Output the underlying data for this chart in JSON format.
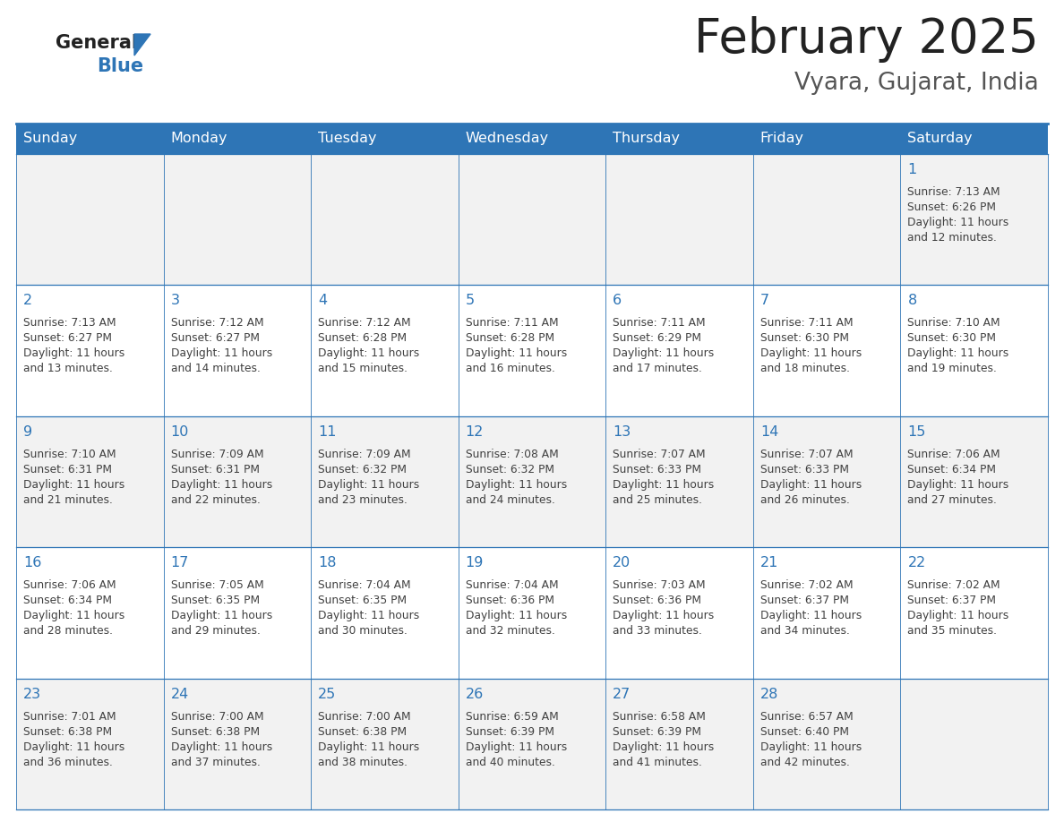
{
  "title": "February 2025",
  "subtitle": "Vyara, Gujarat, India",
  "header_color": "#2E75B6",
  "header_text_color": "#FFFFFF",
  "days_of_week": [
    "Sunday",
    "Monday",
    "Tuesday",
    "Wednesday",
    "Thursday",
    "Friday",
    "Saturday"
  ],
  "background_color": "#FFFFFF",
  "cell_bg_even": "#F2F2F2",
  "cell_bg_odd": "#FFFFFF",
  "border_color": "#2E75B6",
  "text_color": "#404040",
  "day_number_color": "#2E75B6",
  "logo_text_color": "#222222",
  "logo_blue_color": "#2E75B6",
  "title_color": "#222222",
  "subtitle_color": "#555555",
  "calendar_data": [
    [
      null,
      null,
      null,
      null,
      null,
      null,
      {
        "day": 1,
        "sunrise": "7:13 AM",
        "sunset": "6:26 PM",
        "daylight": "11 hours and 12 minutes."
      }
    ],
    [
      {
        "day": 2,
        "sunrise": "7:13 AM",
        "sunset": "6:27 PM",
        "daylight": "11 hours and 13 minutes."
      },
      {
        "day": 3,
        "sunrise": "7:12 AM",
        "sunset": "6:27 PM",
        "daylight": "11 hours and 14 minutes."
      },
      {
        "day": 4,
        "sunrise": "7:12 AM",
        "sunset": "6:28 PM",
        "daylight": "11 hours and 15 minutes."
      },
      {
        "day": 5,
        "sunrise": "7:11 AM",
        "sunset": "6:28 PM",
        "daylight": "11 hours and 16 minutes."
      },
      {
        "day": 6,
        "sunrise": "7:11 AM",
        "sunset": "6:29 PM",
        "daylight": "11 hours and 17 minutes."
      },
      {
        "day": 7,
        "sunrise": "7:11 AM",
        "sunset": "6:30 PM",
        "daylight": "11 hours and 18 minutes."
      },
      {
        "day": 8,
        "sunrise": "7:10 AM",
        "sunset": "6:30 PM",
        "daylight": "11 hours and 19 minutes."
      }
    ],
    [
      {
        "day": 9,
        "sunrise": "7:10 AM",
        "sunset": "6:31 PM",
        "daylight": "11 hours and 21 minutes."
      },
      {
        "day": 10,
        "sunrise": "7:09 AM",
        "sunset": "6:31 PM",
        "daylight": "11 hours and 22 minutes."
      },
      {
        "day": 11,
        "sunrise": "7:09 AM",
        "sunset": "6:32 PM",
        "daylight": "11 hours and 23 minutes."
      },
      {
        "day": 12,
        "sunrise": "7:08 AM",
        "sunset": "6:32 PM",
        "daylight": "11 hours and 24 minutes."
      },
      {
        "day": 13,
        "sunrise": "7:07 AM",
        "sunset": "6:33 PM",
        "daylight": "11 hours and 25 minutes."
      },
      {
        "day": 14,
        "sunrise": "7:07 AM",
        "sunset": "6:33 PM",
        "daylight": "11 hours and 26 minutes."
      },
      {
        "day": 15,
        "sunrise": "7:06 AM",
        "sunset": "6:34 PM",
        "daylight": "11 hours and 27 minutes."
      }
    ],
    [
      {
        "day": 16,
        "sunrise": "7:06 AM",
        "sunset": "6:34 PM",
        "daylight": "11 hours and 28 minutes."
      },
      {
        "day": 17,
        "sunrise": "7:05 AM",
        "sunset": "6:35 PM",
        "daylight": "11 hours and 29 minutes."
      },
      {
        "day": 18,
        "sunrise": "7:04 AM",
        "sunset": "6:35 PM",
        "daylight": "11 hours and 30 minutes."
      },
      {
        "day": 19,
        "sunrise": "7:04 AM",
        "sunset": "6:36 PM",
        "daylight": "11 hours and 32 minutes."
      },
      {
        "day": 20,
        "sunrise": "7:03 AM",
        "sunset": "6:36 PM",
        "daylight": "11 hours and 33 minutes."
      },
      {
        "day": 21,
        "sunrise": "7:02 AM",
        "sunset": "6:37 PM",
        "daylight": "11 hours and 34 minutes."
      },
      {
        "day": 22,
        "sunrise": "7:02 AM",
        "sunset": "6:37 PM",
        "daylight": "11 hours and 35 minutes."
      }
    ],
    [
      {
        "day": 23,
        "sunrise": "7:01 AM",
        "sunset": "6:38 PM",
        "daylight": "11 hours and 36 minutes."
      },
      {
        "day": 24,
        "sunrise": "7:00 AM",
        "sunset": "6:38 PM",
        "daylight": "11 hours and 37 minutes."
      },
      {
        "day": 25,
        "sunrise": "7:00 AM",
        "sunset": "6:38 PM",
        "daylight": "11 hours and 38 minutes."
      },
      {
        "day": 26,
        "sunrise": "6:59 AM",
        "sunset": "6:39 PM",
        "daylight": "11 hours and 40 minutes."
      },
      {
        "day": 27,
        "sunrise": "6:58 AM",
        "sunset": "6:39 PM",
        "daylight": "11 hours and 41 minutes."
      },
      {
        "day": 28,
        "sunrise": "6:57 AM",
        "sunset": "6:40 PM",
        "daylight": "11 hours and 42 minutes."
      },
      null
    ]
  ]
}
